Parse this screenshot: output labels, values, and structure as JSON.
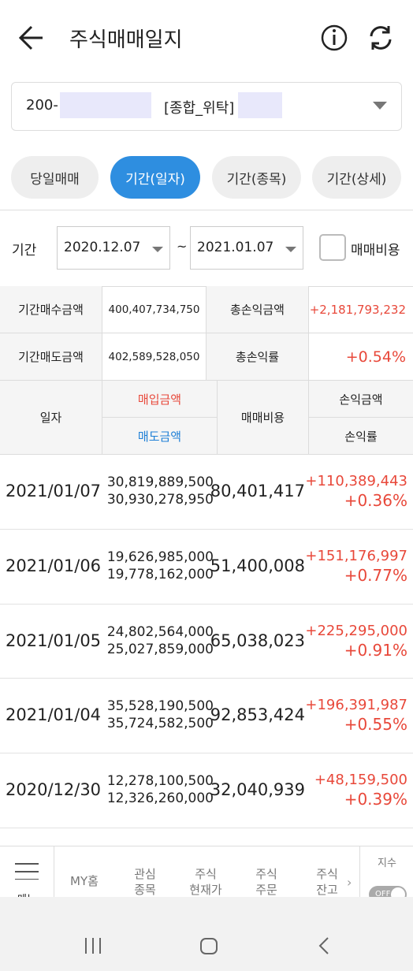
{
  "header": {
    "title": "주식매매일지"
  },
  "account": {
    "prefix": "200-",
    "type": "[종합_위탁]"
  },
  "tabs": {
    "items": [
      "당일매매",
      "기간(일자)",
      "기간(종목)",
      "기간(상세)"
    ],
    "active": 1
  },
  "period": {
    "label": "기간",
    "from": "2020.12.07",
    "separator": "~",
    "to": "2021.01.07",
    "checkbox_label": "매매비용"
  },
  "summary": {
    "rows": [
      [
        "기간매수금액",
        "400,407,734,750",
        "총손익금액",
        "+2,181,793,232"
      ],
      [
        "기간매도금액",
        "402,589,528,050",
        "총손익률",
        "+0.54%"
      ]
    ]
  },
  "table": {
    "header": {
      "date": "일자",
      "buy": "매입금액",
      "sell": "매도금액",
      "cost": "매매비용",
      "pnl": "손익금액",
      "rate": "손익률"
    },
    "rows": [
      [
        "2021/01/07",
        "30,819,889,500",
        "30,930,278,950",
        "80,401,417",
        "+110,389,443",
        "+0.36%"
      ],
      [
        "2021/01/06",
        "19,626,985,000",
        "19,778,162,000",
        "51,400,008",
        "+151,176,997",
        "+0.77%"
      ],
      [
        "2021/01/05",
        "24,802,564,000",
        "25,027,859,000",
        "65,038,023",
        "+225,295,000",
        "+0.91%"
      ],
      [
        "2021/01/04",
        "35,528,190,500",
        "35,724,582,500",
        "92,853,424",
        "+196,391,987",
        "+0.55%"
      ],
      [
        "2020/12/30",
        "12,278,100,500",
        "12,326,260,000",
        "32,040,939",
        "+48,159,500",
        "+0.39%"
      ]
    ]
  },
  "bottom_nav": {
    "menu": "메뉴",
    "items": [
      [
        "MY홈"
      ],
      [
        "관심",
        "종목"
      ],
      [
        "주식",
        "현재가"
      ],
      [
        "주식",
        "주문"
      ],
      [
        "주식",
        "잔고"
      ]
    ],
    "index_label": "지수",
    "toggle": "OFF"
  }
}
